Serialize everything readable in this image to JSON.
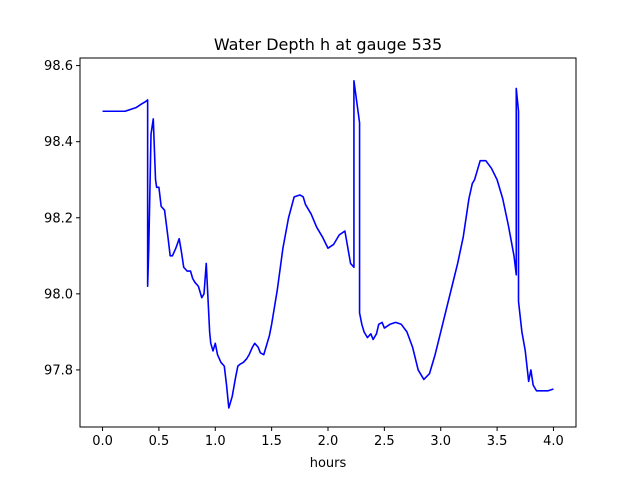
{
  "chart_data": {
    "type": "line",
    "title": "Water Depth h at gauge 535",
    "xlabel": "hours",
    "ylabel": "",
    "xlim": [
      -0.2,
      4.2
    ],
    "ylim": [
      97.65,
      98.62
    ],
    "xticks": [
      0.0,
      0.5,
      1.0,
      1.5,
      2.0,
      2.5,
      3.0,
      3.5,
      4.0
    ],
    "xtick_labels": [
      "0.0",
      "0.5",
      "1.0",
      "1.5",
      "2.0",
      "2.5",
      "3.0",
      "3.5",
      "4.0"
    ],
    "yticks": [
      97.8,
      98.0,
      98.2,
      98.4,
      98.6
    ],
    "ytick_labels": [
      "97.8",
      "98.0",
      "98.2",
      "98.4",
      "98.6"
    ],
    "grid": false,
    "series": [
      {
        "color": "#0000ff",
        "x": [
          0.0,
          0.1,
          0.2,
          0.25,
          0.3,
          0.35,
          0.38,
          0.4,
          0.4,
          0.41,
          0.43,
          0.45,
          0.46,
          0.47,
          0.48,
          0.5,
          0.52,
          0.55,
          0.58,
          0.6,
          0.62,
          0.65,
          0.68,
          0.7,
          0.72,
          0.75,
          0.78,
          0.8,
          0.82,
          0.85,
          0.88,
          0.9,
          0.92,
          0.95,
          0.96,
          0.98,
          1.0,
          1.02,
          1.05,
          1.08,
          1.1,
          1.12,
          1.15,
          1.18,
          1.2,
          1.22,
          1.25,
          1.28,
          1.3,
          1.33,
          1.35,
          1.38,
          1.4,
          1.43,
          1.45,
          1.48,
          1.5,
          1.55,
          1.6,
          1.65,
          1.7,
          1.75,
          1.78,
          1.8,
          1.85,
          1.9,
          1.95,
          2.0,
          2.05,
          2.1,
          2.15,
          2.2,
          2.23,
          2.23,
          2.28,
          2.28,
          2.3,
          2.32,
          2.35,
          2.38,
          2.4,
          2.43,
          2.45,
          2.48,
          2.5,
          2.55,
          2.6,
          2.65,
          2.7,
          2.75,
          2.8,
          2.85,
          2.9,
          2.95,
          3.0,
          3.05,
          3.1,
          3.15,
          3.2,
          3.25,
          3.28,
          3.3,
          3.35,
          3.4,
          3.45,
          3.5,
          3.55,
          3.6,
          3.65,
          3.67,
          3.67,
          3.69,
          3.69,
          3.72,
          3.75,
          3.78,
          3.8,
          3.82,
          3.85,
          3.9,
          3.95,
          4.0
        ],
        "values": [
          98.48,
          98.48,
          98.48,
          98.485,
          98.49,
          98.5,
          98.505,
          98.51,
          98.02,
          98.12,
          98.42,
          98.46,
          98.38,
          98.3,
          98.28,
          98.28,
          98.23,
          98.22,
          98.15,
          98.1,
          98.1,
          98.12,
          98.145,
          98.11,
          98.07,
          98.06,
          98.06,
          98.04,
          98.03,
          98.02,
          97.99,
          98.0,
          98.08,
          97.9,
          97.87,
          97.85,
          97.87,
          97.84,
          97.82,
          97.81,
          97.76,
          97.7,
          97.73,
          97.78,
          97.81,
          97.815,
          97.82,
          97.83,
          97.84,
          97.86,
          97.87,
          97.86,
          97.845,
          97.84,
          97.86,
          97.89,
          97.92,
          98.01,
          98.12,
          98.2,
          98.255,
          98.26,
          98.255,
          98.235,
          98.21,
          98.175,
          98.15,
          98.12,
          98.13,
          98.155,
          98.165,
          98.08,
          98.07,
          98.56,
          98.45,
          97.95,
          97.92,
          97.9,
          97.885,
          97.895,
          97.88,
          97.895,
          97.92,
          97.925,
          97.91,
          97.92,
          97.925,
          97.92,
          97.9,
          97.86,
          97.8,
          97.775,
          97.79,
          97.84,
          97.9,
          97.96,
          98.02,
          98.08,
          98.15,
          98.25,
          98.29,
          98.3,
          98.35,
          98.35,
          98.33,
          98.3,
          98.25,
          98.18,
          98.1,
          98.05,
          98.54,
          98.48,
          97.98,
          97.9,
          97.85,
          97.77,
          97.8,
          97.76,
          97.745,
          97.745,
          97.745,
          97.75
        ]
      }
    ]
  }
}
